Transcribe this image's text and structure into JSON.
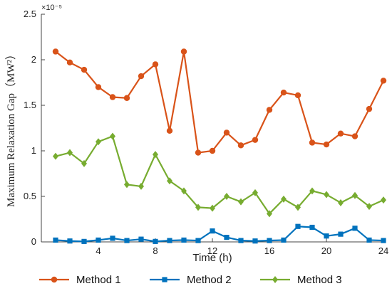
{
  "chart_data": {
    "type": "line",
    "xlabel": "Time (h)",
    "ylabel": "Maximum Relaxation Gap（MW²）",
    "y_multiplier": "×10⁻⁵",
    "xlim": [
      0,
      24
    ],
    "ylim": [
      0,
      2.5
    ],
    "x_ticks": [
      "4",
      "8",
      "12",
      "16",
      "20",
      "24"
    ],
    "x_tick_values": [
      4,
      8,
      12,
      16,
      20,
      24
    ],
    "y_ticks": [
      "0",
      "0.5",
      "1",
      "1.5",
      "2",
      "2.5"
    ],
    "y_tick_values": [
      0,
      0.5,
      1,
      1.5,
      2,
      2.5
    ],
    "grid": false,
    "legend_placement": "bottom",
    "x": [
      1,
      2,
      3,
      4,
      5,
      6,
      7,
      8,
      9,
      10,
      11,
      12,
      13,
      14,
      15,
      16,
      17,
      18,
      19,
      20,
      21,
      22,
      23,
      24
    ],
    "series": [
      {
        "name": "Method 1",
        "color": "#d95319",
        "marker": "circle",
        "values": [
          2.09,
          1.97,
          1.89,
          1.7,
          1.59,
          1.58,
          1.82,
          1.95,
          1.22,
          2.09,
          0.98,
          1.0,
          1.2,
          1.06,
          1.12,
          1.45,
          1.64,
          1.61,
          1.09,
          1.07,
          1.19,
          1.16,
          1.46,
          1.77
        ]
      },
      {
        "name": "Method 2",
        "color": "#0072bd",
        "marker": "square",
        "values": [
          0.02,
          0.01,
          0.005,
          0.02,
          0.04,
          0.015,
          0.03,
          0.005,
          0.015,
          0.02,
          0.015,
          0.12,
          0.05,
          0.015,
          0.01,
          0.015,
          0.02,
          0.17,
          0.16,
          0.065,
          0.085,
          0.15,
          0.02,
          0.015
        ]
      },
      {
        "name": "Method 3",
        "color": "#77ac30",
        "marker": "diamond",
        "values": [
          0.94,
          0.98,
          0.86,
          1.1,
          1.16,
          0.63,
          0.61,
          0.96,
          0.67,
          0.56,
          0.38,
          0.37,
          0.5,
          0.44,
          0.54,
          0.31,
          0.47,
          0.38,
          0.56,
          0.52,
          0.43,
          0.51,
          0.39,
          0.46
        ]
      }
    ]
  }
}
